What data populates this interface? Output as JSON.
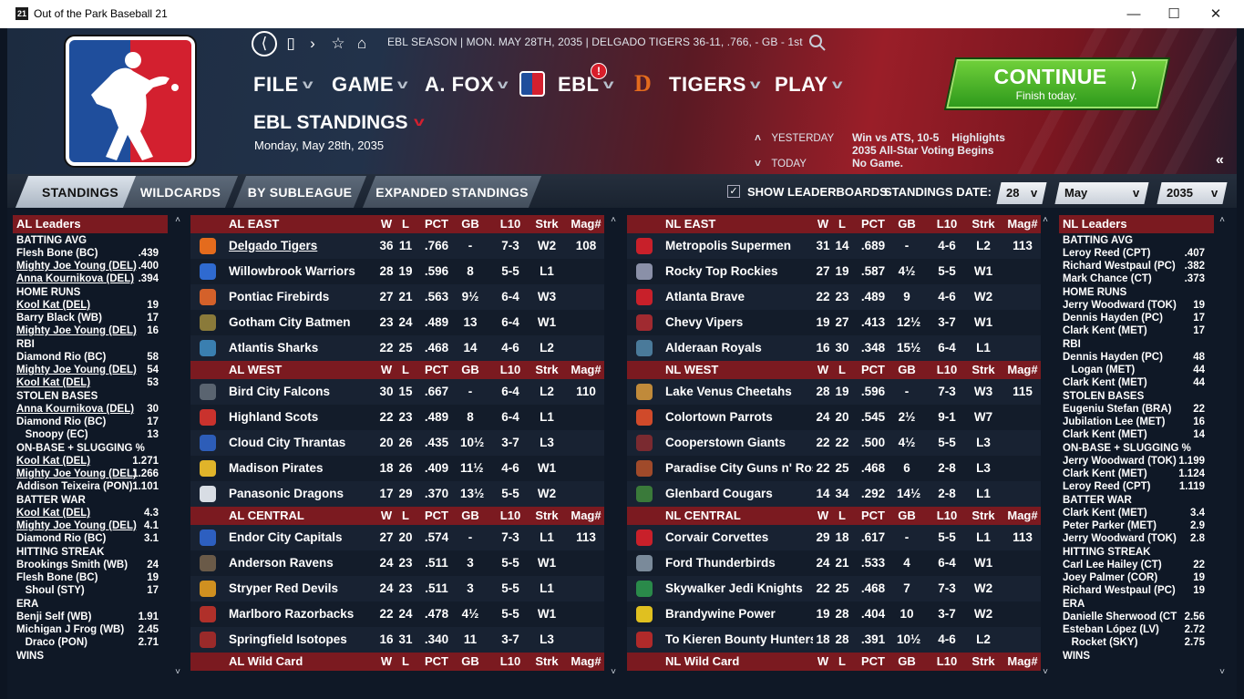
{
  "window": {
    "title": "Out of the Park Baseball 21",
    "icon_text": "21"
  },
  "header": {
    "info": "EBL SEASON  |  MON. MAY 28TH, 2035  |  DELGADO TIGERS   36-11, .766, - GB - 1st",
    "menu": [
      "FILE",
      "GAME",
      "A. FOX",
      "EBL",
      "TIGERS",
      "PLAY"
    ],
    "ebl_alert": "!",
    "page_title": "EBL STANDINGS",
    "page_date": "Monday, May 28th, 2035",
    "continue_label": "CONTINUE",
    "continue_sub": "Finish today.",
    "yesterday_label": "YESTERDAY",
    "today_label": "TODAY",
    "yesterday_text": "Win vs ATS, 10-5",
    "highlights": "Highlights",
    "allstar": "2035 All-Star Voting Begins",
    "today_text": "No Game.",
    "accent": "#d3202f"
  },
  "tabs": [
    "STANDINGS",
    "WILDCARDS",
    "BY SUBLEAGUE",
    "EXPANDED STANDINGS"
  ],
  "controls": {
    "show_leaderboards": "SHOW LEADERBOARDS",
    "standings_date": "STANDINGS DATE:",
    "day": "28",
    "month": "May",
    "year": "2035"
  },
  "al_leaders": {
    "title": "AL Leaders",
    "cats": [
      {
        "name": "BATTING AVG",
        "rows": [
          [
            "Flesh Bone (BC)",
            ".439",
            false
          ],
          [
            "Mighty Joe Young (DEL)",
            ".400",
            true
          ],
          [
            "Anna Kournikova (DEL)",
            ".394",
            true
          ]
        ]
      },
      {
        "name": "HOME RUNS",
        "rows": [
          [
            "Kool Kat (DEL)",
            "19",
            true
          ],
          [
            "Barry Black (WB)",
            "17",
            false
          ],
          [
            "Mighty Joe Young (DEL)",
            "16",
            true
          ]
        ]
      },
      {
        "name": "RBI",
        "rows": [
          [
            "Diamond Rio (BC)",
            "58",
            false
          ],
          [
            "Mighty Joe Young (DEL)",
            "54",
            true
          ],
          [
            "Kool Kat (DEL)",
            "53",
            true
          ]
        ]
      },
      {
        "name": "STOLEN BASES",
        "rows": [
          [
            "Anna Kournikova (DEL)",
            "30",
            true
          ],
          [
            "Diamond Rio (BC)",
            "17",
            false
          ],
          [
            "   Snoopy (EC)",
            "13",
            false
          ]
        ]
      },
      {
        "name": "ON-BASE + SLUGGING %",
        "rows": [
          [
            "Kool Kat (DEL)",
            "1.271",
            true
          ],
          [
            "Mighty Joe Young (DEL)",
            "1.266",
            true
          ],
          [
            "Addison Teixeira (PON)",
            "1.101",
            false
          ]
        ]
      },
      {
        "name": "BATTER WAR",
        "rows": [
          [
            "Kool Kat (DEL)",
            "4.3",
            true
          ],
          [
            "Mighty Joe Young (DEL)",
            "4.1",
            true
          ],
          [
            "Diamond Rio (BC)",
            "3.1",
            false
          ]
        ]
      },
      {
        "name": "HITTING STREAK",
        "rows": [
          [
            "Brookings Smith (WB)",
            "24",
            false
          ],
          [
            "Flesh Bone (BC)",
            "19",
            false
          ],
          [
            "   Shoul (STY)",
            "17",
            false
          ]
        ]
      },
      {
        "name": "ERA",
        "rows": [
          [
            "Benji Self (WB)",
            "1.91",
            false
          ],
          [
            "Michigan J Frog (WB)",
            "2.45",
            false
          ],
          [
            "   Draco (PON)",
            "2.71",
            false
          ]
        ]
      },
      {
        "name": "WINS",
        "rows": []
      }
    ]
  },
  "nl_leaders": {
    "title": "NL Leaders",
    "cats": [
      {
        "name": "BATTING AVG",
        "rows": [
          [
            "Leroy Reed (CPT)",
            ".407",
            false
          ],
          [
            "Richard Westpaul (PC)",
            ".382",
            false
          ],
          [
            "Mark Chance (CT)",
            ".373",
            false
          ]
        ]
      },
      {
        "name": "HOME RUNS",
        "rows": [
          [
            "Jerry Woodward (TOK)",
            "19",
            false
          ],
          [
            "Dennis Hayden (PC)",
            "17",
            false
          ],
          [
            "Clark Kent (MET)",
            "17",
            false
          ]
        ]
      },
      {
        "name": "RBI",
        "rows": [
          [
            "Dennis Hayden (PC)",
            "48",
            false
          ],
          [
            "   Logan (MET)",
            "44",
            false
          ],
          [
            "Clark Kent (MET)",
            "44",
            false
          ]
        ]
      },
      {
        "name": "STOLEN BASES",
        "rows": [
          [
            "Eugeniu Stefan (BRA)",
            "22",
            false
          ],
          [
            "Jubilation Lee (MET)",
            "16",
            false
          ],
          [
            "Clark Kent (MET)",
            "14",
            false
          ]
        ]
      },
      {
        "name": "ON-BASE + SLUGGING %",
        "rows": [
          [
            "Jerry Woodward (TOK)",
            "1.199",
            false
          ],
          [
            "Clark Kent (MET)",
            "1.124",
            false
          ],
          [
            "Leroy Reed (CPT)",
            "1.119",
            false
          ]
        ]
      },
      {
        "name": "BATTER WAR",
        "rows": [
          [
            "Clark Kent (MET)",
            "3.4",
            false
          ],
          [
            "Peter Parker (MET)",
            "2.9",
            false
          ],
          [
            "Jerry Woodward (TOK)",
            "2.8",
            false
          ]
        ]
      },
      {
        "name": "HITTING STREAK",
        "rows": [
          [
            "Carl Lee Hailey (CT)",
            "22",
            false
          ],
          [
            "Joey Palmer (COR)",
            "19",
            false
          ],
          [
            "Richard Westpaul (PC)",
            "19",
            false
          ]
        ]
      },
      {
        "name": "ERA",
        "rows": [
          [
            "Danielle Sherwood (CT",
            "2.56",
            false
          ],
          [
            "Esteban López (LV)",
            "2.72",
            false
          ],
          [
            "   Rocket (SKY)",
            "2.75",
            false
          ]
        ]
      },
      {
        "name": "WINS",
        "rows": []
      }
    ]
  },
  "cols": [
    "W",
    "L",
    "PCT",
    "GB",
    "L10",
    "Strk",
    "Mag#"
  ],
  "al_divisions": [
    {
      "name": "AL EAST",
      "teams": [
        {
          "n": "Delgado Tigers",
          "w": "36",
          "l": "11",
          "pct": ".766",
          "gb": "-",
          "l10": "7-3",
          "strk": "W2",
          "mag": "108",
          "color": "#e46b1d",
          "link": true
        },
        {
          "n": "Willowbrook Warriors",
          "w": "28",
          "l": "19",
          "pct": ".596",
          "gb": "8",
          "l10": "5-5",
          "strk": "L1",
          "mag": "",
          "color": "#2f6ad0"
        },
        {
          "n": "Pontiac Firebirds",
          "w": "27",
          "l": "21",
          "pct": ".563",
          "gb": "9½",
          "l10": "6-4",
          "strk": "W3",
          "mag": "",
          "color": "#d4612a"
        },
        {
          "n": "Gotham City Batmen",
          "w": "23",
          "l": "24",
          "pct": ".489",
          "gb": "13",
          "l10": "6-4",
          "strk": "W1",
          "mag": "",
          "color": "#8a7a3a"
        },
        {
          "n": "Atlantis Sharks",
          "w": "22",
          "l": "25",
          "pct": ".468",
          "gb": "14",
          "l10": "4-6",
          "strk": "L2",
          "mag": "",
          "color": "#3a7fb0"
        }
      ]
    },
    {
      "name": "AL WEST",
      "teams": [
        {
          "n": "Bird City Falcons",
          "w": "30",
          "l": "15",
          "pct": ".667",
          "gb": "-",
          "l10": "6-4",
          "strk": "L2",
          "mag": "110",
          "color": "#5a6470"
        },
        {
          "n": "Highland Scots",
          "w": "22",
          "l": "23",
          "pct": ".489",
          "gb": "8",
          "l10": "6-4",
          "strk": "L1",
          "mag": "",
          "color": "#c9322d"
        },
        {
          "n": "Cloud City Thrantas",
          "w": "20",
          "l": "26",
          "pct": ".435",
          "gb": "10½",
          "l10": "3-7",
          "strk": "L3",
          "mag": "",
          "color": "#2d5db8"
        },
        {
          "n": "Madison Pirates",
          "w": "18",
          "l": "26",
          "pct": ".409",
          "gb": "11½",
          "l10": "4-6",
          "strk": "W1",
          "mag": "",
          "color": "#e0b42a"
        },
        {
          "n": "Panasonic Dragons",
          "w": "17",
          "l": "29",
          "pct": ".370",
          "gb": "13½",
          "l10": "5-5",
          "strk": "W2",
          "mag": "",
          "color": "#d8dde4"
        }
      ]
    },
    {
      "name": "AL CENTRAL",
      "teams": [
        {
          "n": "Endor City Capitals",
          "w": "27",
          "l": "20",
          "pct": ".574",
          "gb": "-",
          "l10": "7-3",
          "strk": "L1",
          "mag": "113",
          "color": "#2d5fc0"
        },
        {
          "n": "Anderson Ravens",
          "w": "24",
          "l": "23",
          "pct": ".511",
          "gb": "3",
          "l10": "5-5",
          "strk": "W1",
          "mag": "",
          "color": "#6a5a48"
        },
        {
          "n": "Stryper Red Devils",
          "w": "24",
          "l": "23",
          "pct": ".511",
          "gb": "3",
          "l10": "5-5",
          "strk": "L1",
          "mag": "",
          "color": "#d09020"
        },
        {
          "n": "Marlboro Razorbacks",
          "w": "22",
          "l": "24",
          "pct": ".478",
          "gb": "4½",
          "l10": "5-5",
          "strk": "W1",
          "mag": "",
          "color": "#b0302a"
        },
        {
          "n": "Springfield Isotopes",
          "w": "16",
          "l": "31",
          "pct": ".340",
          "gb": "11",
          "l10": "3-7",
          "strk": "L3",
          "mag": "",
          "color": "#9a2a2a"
        }
      ]
    },
    {
      "name": "AL Wild Card",
      "teams": []
    }
  ],
  "nl_divisions": [
    {
      "name": "NL EAST",
      "teams": [
        {
          "n": "Metropolis Supermen",
          "w": "31",
          "l": "14",
          "pct": ".689",
          "gb": "-",
          "l10": "4-6",
          "strk": "L2",
          "mag": "113",
          "color": "#c8202a"
        },
        {
          "n": "Rocky Top Rockies",
          "w": "27",
          "l": "19",
          "pct": ".587",
          "gb": "4½",
          "l10": "5-5",
          "strk": "W1",
          "mag": "",
          "color": "#8a90a8"
        },
        {
          "n": "Atlanta Brave",
          "w": "22",
          "l": "23",
          "pct": ".489",
          "gb": "9",
          "l10": "4-6",
          "strk": "W2",
          "mag": "",
          "color": "#c8202a"
        },
        {
          "n": "Chevy Vipers",
          "w": "19",
          "l": "27",
          "pct": ".413",
          "gb": "12½",
          "l10": "3-7",
          "strk": "W1",
          "mag": "",
          "color": "#a02a30"
        },
        {
          "n": "Alderaan Royals",
          "w": "16",
          "l": "30",
          "pct": ".348",
          "gb": "15½",
          "l10": "6-4",
          "strk": "L1",
          "mag": "",
          "color": "#4a7a9a"
        }
      ]
    },
    {
      "name": "NL WEST",
      "teams": [
        {
          "n": "Lake Venus Cheetahs",
          "w": "28",
          "l": "19",
          "pct": ".596",
          "gb": "-",
          "l10": "7-3",
          "strk": "W3",
          "mag": "115",
          "color": "#c08a3a"
        },
        {
          "n": "Colortown Parrots",
          "w": "24",
          "l": "20",
          "pct": ".545",
          "gb": "2½",
          "l10": "9-1",
          "strk": "W7",
          "mag": "",
          "color": "#d04a2a"
        },
        {
          "n": "Cooperstown Giants",
          "w": "22",
          "l": "22",
          "pct": ".500",
          "gb": "4½",
          "l10": "5-5",
          "strk": "L3",
          "mag": "",
          "color": "#7a2a30"
        },
        {
          "n": "Paradise City Guns n' Roses",
          "w": "22",
          "l": "25",
          "pct": ".468",
          "gb": "6",
          "l10": "2-8",
          "strk": "L3",
          "mag": "",
          "color": "#a04a2a"
        },
        {
          "n": "Glenbard Cougars",
          "w": "14",
          "l": "34",
          "pct": ".292",
          "gb": "14½",
          "l10": "2-8",
          "strk": "L1",
          "mag": "",
          "color": "#3a7a3a"
        }
      ]
    },
    {
      "name": "NL CENTRAL",
      "teams": [
        {
          "n": "Corvair Corvettes",
          "w": "29",
          "l": "18",
          "pct": ".617",
          "gb": "-",
          "l10": "5-5",
          "strk": "L1",
          "mag": "113",
          "color": "#c8202a"
        },
        {
          "n": "Ford Thunderbirds",
          "w": "24",
          "l": "21",
          "pct": ".533",
          "gb": "4",
          "l10": "6-4",
          "strk": "W1",
          "mag": "",
          "color": "#7a8a9a"
        },
        {
          "n": "Skywalker Jedi Knights",
          "w": "22",
          "l": "25",
          "pct": ".468",
          "gb": "7",
          "l10": "7-3",
          "strk": "W2",
          "mag": "",
          "color": "#2a8a4a"
        },
        {
          "n": "Brandywine Power",
          "w": "19",
          "l": "28",
          "pct": ".404",
          "gb": "10",
          "l10": "3-7",
          "strk": "W2",
          "mag": "",
          "color": "#e0c020"
        },
        {
          "n": "To Kieren Bounty Hunters",
          "w": "18",
          "l": "28",
          "pct": ".391",
          "gb": "10½",
          "l10": "4-6",
          "strk": "L2",
          "mag": "",
          "color": "#b02a2a"
        }
      ]
    },
    {
      "name": "NL  Wild Card",
      "teams": []
    }
  ]
}
